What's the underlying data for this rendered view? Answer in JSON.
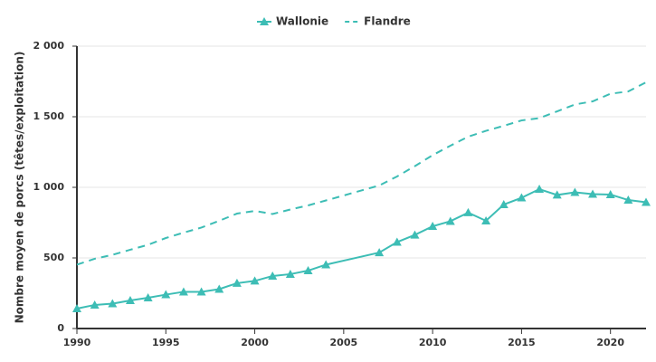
{
  "chart_data": {
    "type": "line",
    "ylabel": "Nombre moyen de porcs (têtes/exploitation)",
    "xlim": [
      1990,
      2022
    ],
    "xticks": [
      1990,
      1995,
      2000,
      2005,
      2010,
      2015,
      2020
    ],
    "ylim": [
      0,
      2000
    ],
    "yticks": [
      0,
      500,
      {
        "value": 1000,
        "label": "1 000"
      },
      {
        "value": 1500,
        "label": "1 500"
      },
      {
        "value": 2000,
        "label": "2 000"
      }
    ],
    "grid": true,
    "legend": "top",
    "series": [
      {
        "name": "Wallonie",
        "color": "#3dbdb5",
        "linestyle": "solid",
        "marker": "triangle",
        "x": [
          1990,
          1991,
          1992,
          1993,
          1994,
          1995,
          1996,
          1997,
          1998,
          1999,
          2000,
          2001,
          2002,
          2003,
          2004,
          2007,
          2008,
          2009,
          2010,
          2011,
          2012,
          2013,
          2014,
          2015,
          2016,
          2017,
          2018,
          2019,
          2020,
          2021,
          2022
        ],
        "values": [
          141,
          167,
          176,
          199,
          218,
          240,
          260,
          260,
          279,
          321,
          337,
          372,
          385,
          410,
          452,
          538,
          612,
          663,
          724,
          760,
          821,
          763,
          878,
          926,
          987,
          946,
          965,
          952,
          949,
          910,
          894
        ]
      },
      {
        "name": "Flandre",
        "color": "#3dbdb5",
        "linestyle": "dashed",
        "marker": "none",
        "x": [
          1990,
          1991,
          1992,
          1993,
          1994,
          1995,
          1996,
          1997,
          1998,
          1999,
          2000,
          2001,
          2002,
          2003,
          2004,
          2005,
          2006,
          2007,
          2008,
          2009,
          2010,
          2011,
          2012,
          2013,
          2014,
          2015,
          2016,
          2017,
          2018,
          2019,
          2020,
          2021,
          2022
        ],
        "values": [
          452,
          494,
          522,
          558,
          593,
          641,
          679,
          715,
          763,
          814,
          833,
          811,
          843,
          872,
          907,
          942,
          978,
          1013,
          1077,
          1150,
          1228,
          1295,
          1359,
          1400,
          1436,
          1474,
          1490,
          1538,
          1587,
          1609,
          1663,
          1679,
          1744
        ]
      }
    ]
  }
}
